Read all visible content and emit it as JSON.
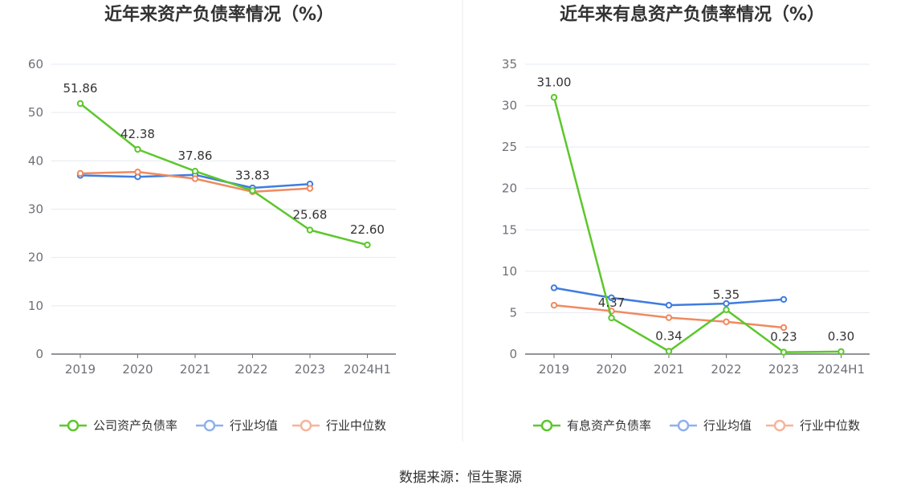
{
  "footer": {
    "source": "数据来源：恒生聚源"
  },
  "colors": {
    "green": "#5cc72c",
    "blue": "#3f7ce0",
    "orange": "#f08a60",
    "grid": "#e6e9f0",
    "axis": "#6e7079"
  },
  "chart_data": [
    {
      "type": "line",
      "title": "近年来资产负债率情况（%）",
      "categories": [
        "2019",
        "2020",
        "2021",
        "2022",
        "2023",
        "2024H1"
      ],
      "ylim": [
        0,
        60
      ],
      "yticks": [
        0,
        10,
        20,
        30,
        40,
        50,
        60
      ],
      "grid": true,
      "legend_position": "bottom",
      "series": [
        {
          "name": "公司资产负债率",
          "color": "#5cc72c",
          "values": [
            51.86,
            42.38,
            37.86,
            33.83,
            25.68,
            22.6
          ],
          "data_labels": [
            "51.86",
            "42.38",
            "37.86",
            "33.83",
            "25.68",
            "22.60"
          ]
        },
        {
          "name": "行业均值",
          "color": "#3f7ce0",
          "values": [
            37.0,
            36.7,
            37.1,
            34.4,
            35.2,
            null
          ]
        },
        {
          "name": "行业中位数",
          "color": "#f08a60",
          "values": [
            37.4,
            37.7,
            36.3,
            33.6,
            34.3,
            null
          ]
        }
      ]
    },
    {
      "type": "line",
      "title": "近年来有息资产负债率情况（%）",
      "categories": [
        "2019",
        "2020",
        "2021",
        "2022",
        "2023",
        "2024H1"
      ],
      "ylim": [
        0,
        35
      ],
      "yticks": [
        0,
        5,
        10,
        15,
        20,
        25,
        30,
        35
      ],
      "grid": true,
      "legend_position": "bottom",
      "series": [
        {
          "name": "有息资产负债率",
          "color": "#5cc72c",
          "values": [
            31.0,
            4.37,
            0.34,
            5.35,
            0.23,
            0.3
          ],
          "data_labels": [
            "31.00",
            "4.37",
            "0.34",
            "5.35",
            "0.23",
            "0.30"
          ]
        },
        {
          "name": "行业均值",
          "color": "#3f7ce0",
          "values": [
            8.0,
            6.8,
            5.9,
            6.1,
            6.6,
            null
          ]
        },
        {
          "name": "行业中位数",
          "color": "#f08a60",
          "values": [
            5.9,
            5.2,
            4.4,
            3.9,
            3.2,
            null
          ]
        }
      ]
    }
  ]
}
